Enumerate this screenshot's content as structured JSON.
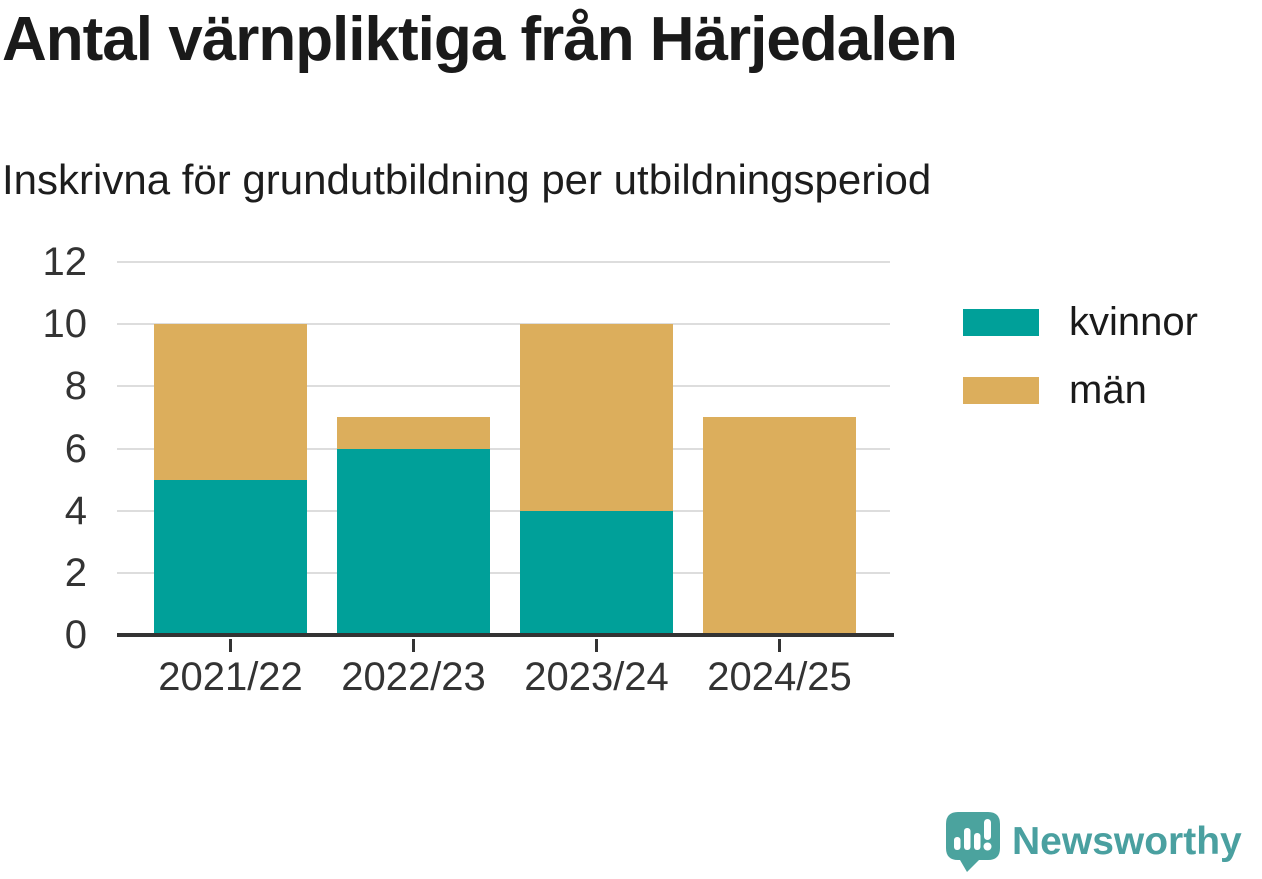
{
  "chart_data": {
    "type": "bar",
    "stacked": true,
    "title": "Antal värnpliktiga från Härjedalen",
    "subtitle": "Inskrivna för grundutbildning per utbildningsperiod",
    "categories": [
      "2021/22",
      "2022/23",
      "2023/24",
      "2024/25"
    ],
    "series": [
      {
        "name": "kvinnor",
        "color": "#00A099",
        "values": [
          5,
          6,
          4,
          0
        ]
      },
      {
        "name": "män",
        "color": "#DCAE5C",
        "values": [
          5,
          1,
          6,
          7
        ]
      }
    ],
    "totals": [
      10,
      7,
      10,
      7
    ],
    "xlabel": "",
    "ylabel": "",
    "ylim": [
      0,
      12
    ],
    "yticks": [
      0,
      2,
      4,
      6,
      8,
      10,
      12
    ],
    "grid": true,
    "legend_position": "right-top"
  },
  "colors": {
    "grid": "#DDDDDD",
    "axis": "#333333",
    "tick_label": "#333333",
    "title_text": "#1A1A1A"
  },
  "branding": {
    "name": "Newsworthy",
    "icon": "newsworthy-logo-icon",
    "icon_color": "#4BA39E",
    "text_color": "#4AA0A0"
  }
}
